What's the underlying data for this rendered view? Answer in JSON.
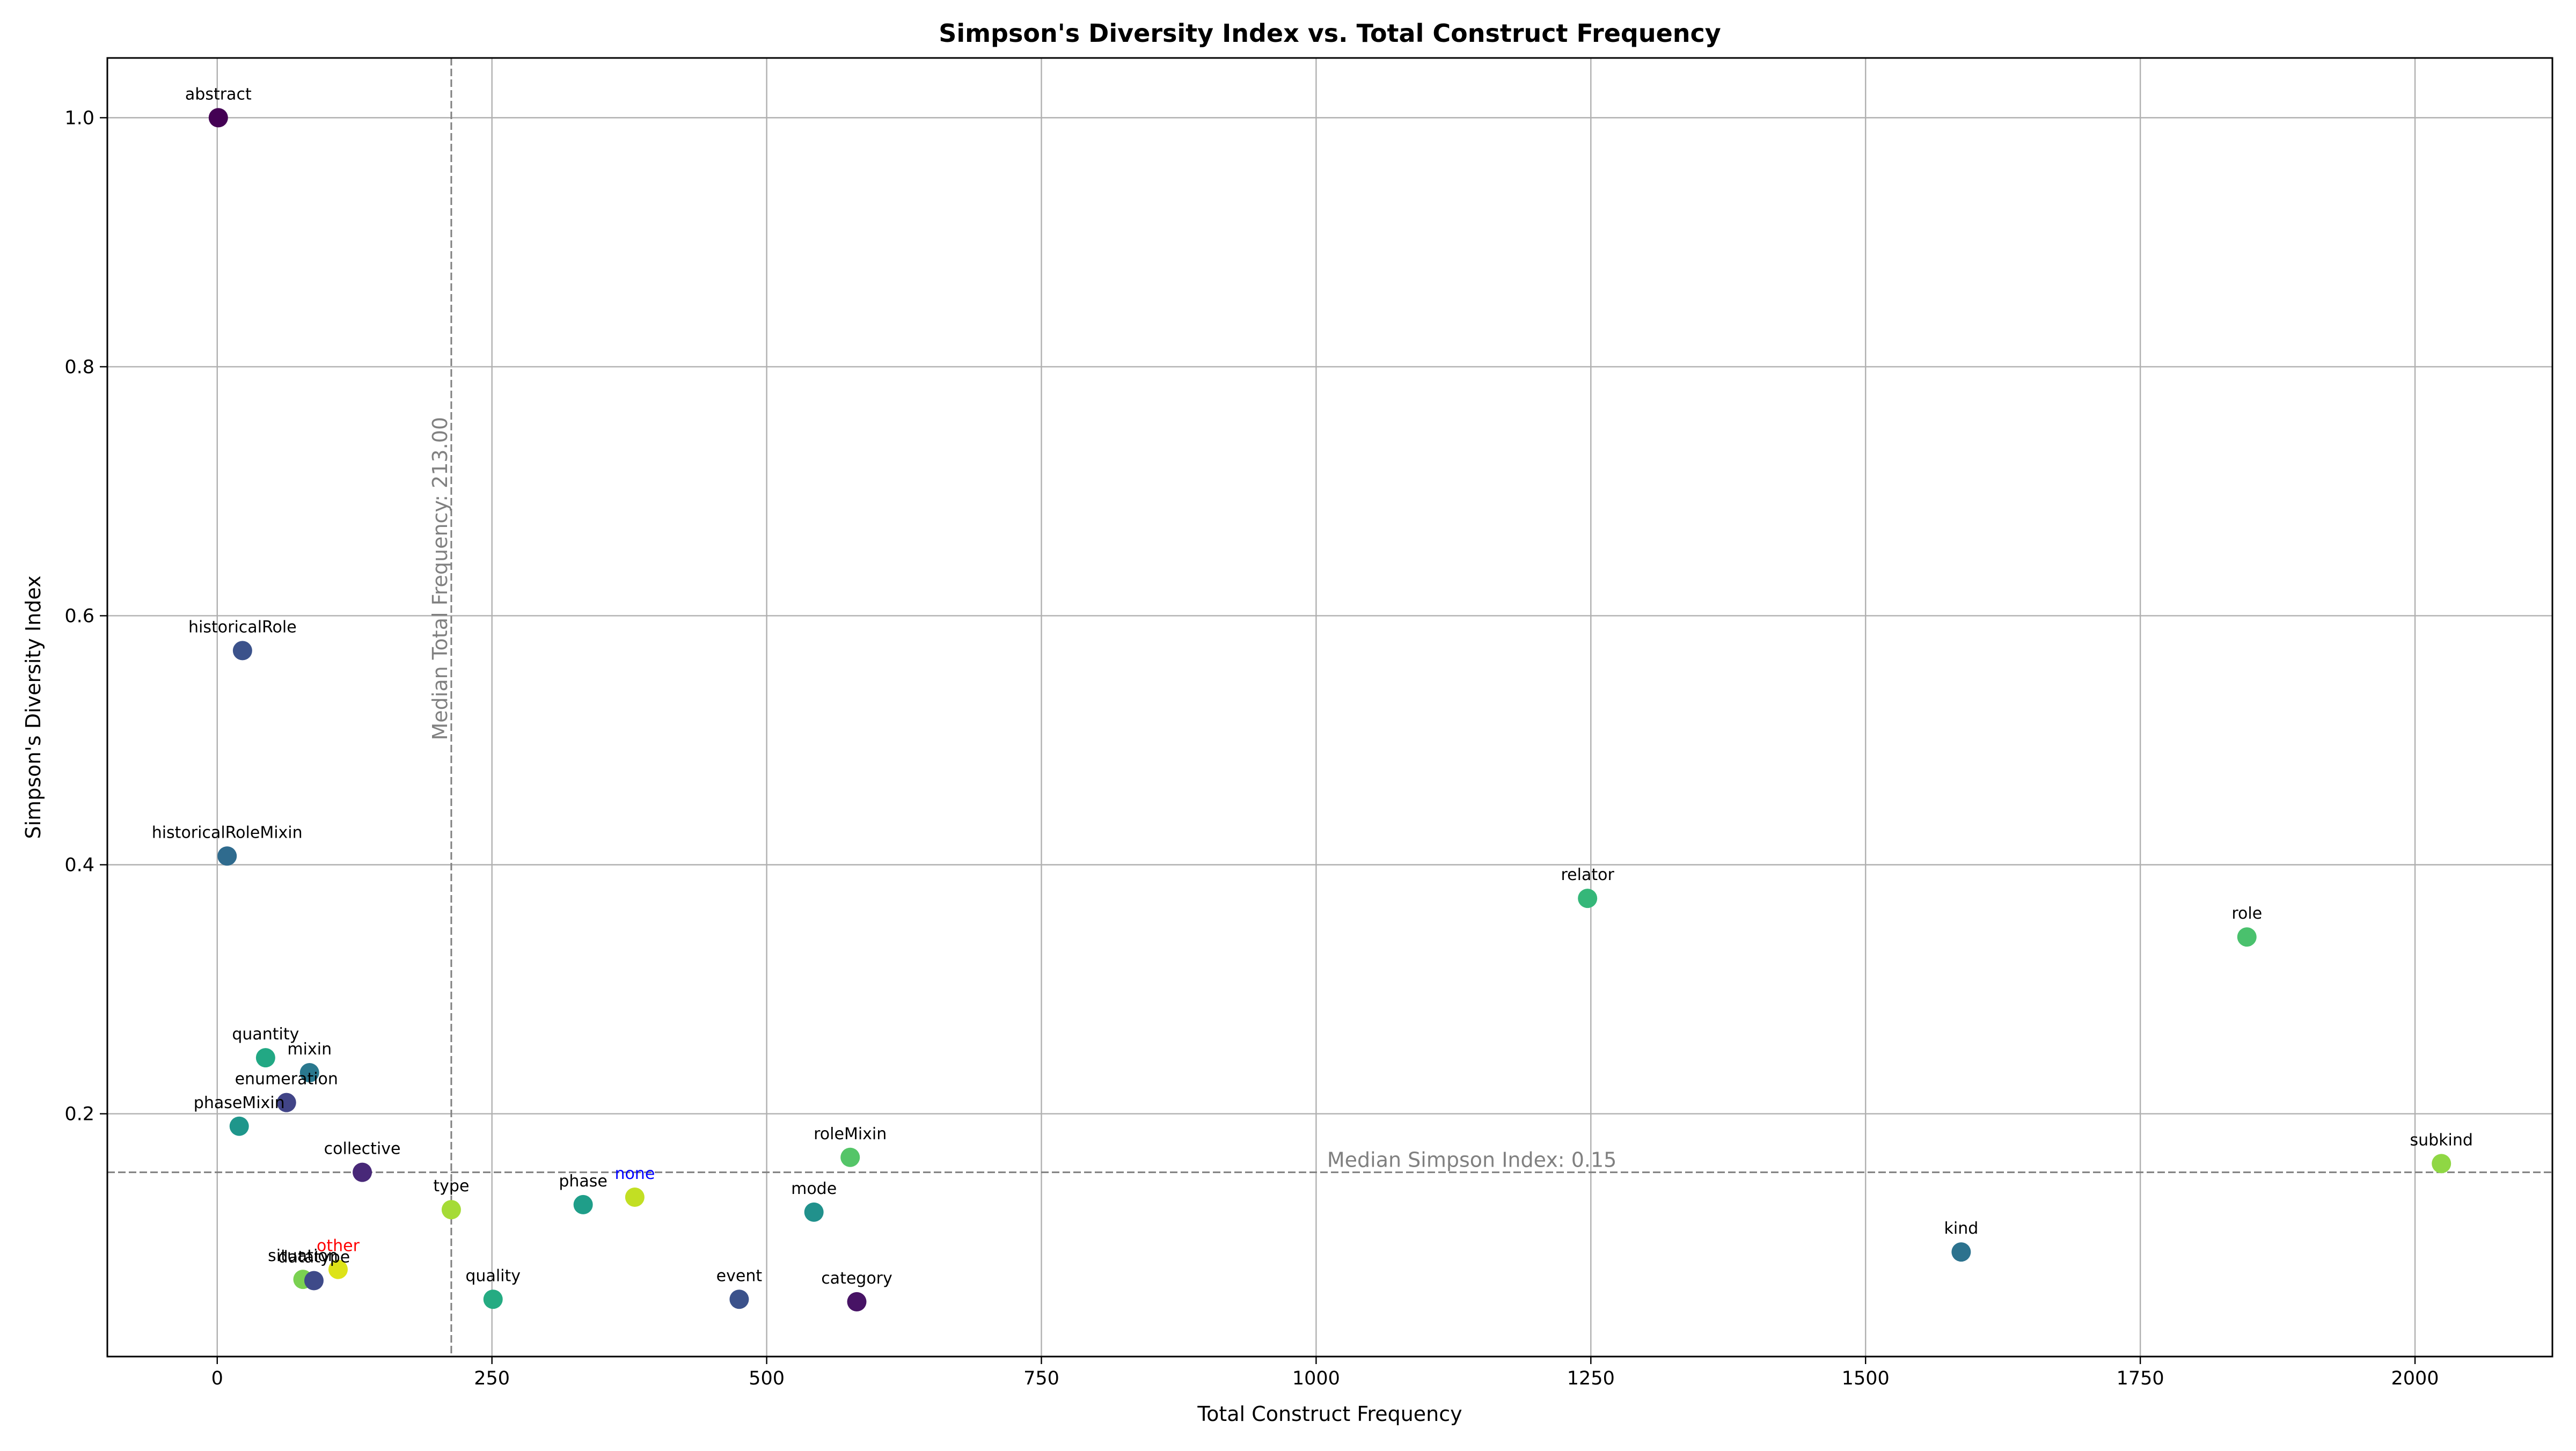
{
  "chart_data": {
    "type": "scatter",
    "title": "Simpson's Diversity Index vs. Total Construct Frequency",
    "xlabel": "Total Construct Frequency",
    "ylabel": "Simpson's Diversity Index",
    "xlim": [
      -100,
      2125
    ],
    "ylim": [
      0.005,
      1.048
    ],
    "xticks": [
      0,
      250,
      500,
      750,
      1000,
      1250,
      1500,
      1750,
      2000
    ],
    "yticks": [
      0.2,
      0.4,
      0.6,
      0.8,
      1.0
    ],
    "xtick_labels": [
      "0",
      "250",
      "500",
      "750",
      "1000",
      "1250",
      "1500",
      "1750",
      "2000"
    ],
    "ytick_labels": [
      "0.2",
      "0.4",
      "0.6",
      "0.8",
      "1.0"
    ],
    "grid": true,
    "colormap": "viridis",
    "points": [
      {
        "label": "abstract",
        "x": 1,
        "y": 1.0,
        "color": "#440154"
      },
      {
        "label": "historicalRole",
        "x": 23,
        "y": 0.572,
        "color": "#3b528b"
      },
      {
        "label": "historicalRoleMixin",
        "x": 9,
        "y": 0.407,
        "color": "#2f6b8e"
      },
      {
        "label": "quantity",
        "x": 44,
        "y": 0.245,
        "color": "#22a884"
      },
      {
        "label": "mixin",
        "x": 84,
        "y": 0.233,
        "color": "#2a788e"
      },
      {
        "label": "enumeration",
        "x": 63,
        "y": 0.209,
        "color": "#414487"
      },
      {
        "label": "phaseMixin",
        "x": 20,
        "y": 0.19,
        "color": "#1f968b"
      },
      {
        "label": "collective",
        "x": 132,
        "y": 0.153,
        "color": "#482878"
      },
      {
        "label": "type",
        "x": 213,
        "y": 0.123,
        "color": "#a5db36"
      },
      {
        "label": "other",
        "x": 110,
        "y": 0.075,
        "color": "#dde318",
        "label_color": "#ff0000"
      },
      {
        "label": "situation",
        "x": 78,
        "y": 0.067,
        "color": "#7ad151"
      },
      {
        "label": "datatype",
        "x": 88,
        "y": 0.066,
        "color": "#3e4a89"
      },
      {
        "label": "quality",
        "x": 251,
        "y": 0.051,
        "color": "#25ab82"
      },
      {
        "label": "phase",
        "x": 333,
        "y": 0.127,
        "color": "#1f9e89"
      },
      {
        "label": "none",
        "x": 380,
        "y": 0.133,
        "color": "#c2df23",
        "label_color": "#0000ff"
      },
      {
        "label": "event",
        "x": 475,
        "y": 0.051,
        "color": "#3b528b"
      },
      {
        "label": "mode",
        "x": 543,
        "y": 0.121,
        "color": "#21918c"
      },
      {
        "label": "roleMixin",
        "x": 576,
        "y": 0.165,
        "color": "#54c568"
      },
      {
        "label": "category",
        "x": 582,
        "y": 0.049,
        "color": "#471365"
      },
      {
        "label": "relator",
        "x": 1247,
        "y": 0.373,
        "color": "#35b779"
      },
      {
        "label": "role",
        "x": 1847,
        "y": 0.342,
        "color": "#4ac16d"
      },
      {
        "label": "kind",
        "x": 1587,
        "y": 0.089,
        "color": "#2c728e"
      },
      {
        "label": "subkind",
        "x": 2024,
        "y": 0.16,
        "color": "#8fd744"
      }
    ],
    "median_x": {
      "value": 213.0,
      "label": "Median Total Frequency: 213.00"
    },
    "median_y": {
      "value": 0.153,
      "label": "Median Simpson Index: 0.15"
    }
  }
}
